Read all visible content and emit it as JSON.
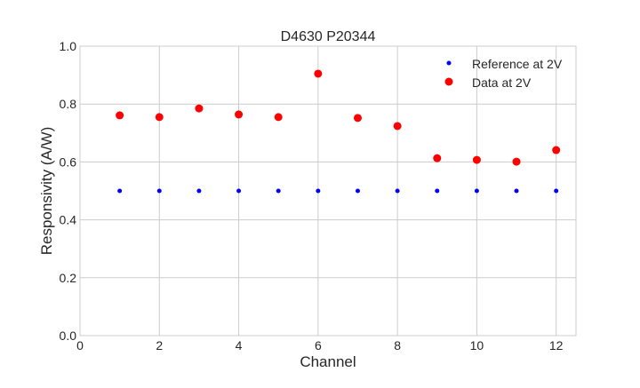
{
  "chart_data": {
    "type": "scatter",
    "title": "D4630 P20344",
    "xlabel": "Channel",
    "ylabel": "Responsivity (A/W)",
    "xlim": [
      0,
      12.5
    ],
    "ylim": [
      0,
      1.0
    ],
    "xticks": [
      "0",
      "2",
      "4",
      "6",
      "8",
      "10",
      "12"
    ],
    "yticks": [
      "0.0",
      "0.2",
      "0.4",
      "0.6",
      "0.8",
      "1.0"
    ],
    "grid": true,
    "legend_position": "top-right",
    "series": [
      {
        "name": "Reference at 2V",
        "color": "#0000ff",
        "marker": "small-dot",
        "x": [
          1,
          2,
          3,
          4,
          5,
          6,
          7,
          8,
          9,
          10,
          11,
          12
        ],
        "y": [
          0.5,
          0.5,
          0.5,
          0.5,
          0.5,
          0.5,
          0.5,
          0.5,
          0.5,
          0.5,
          0.5,
          0.5
        ]
      },
      {
        "name": "Data at 2V",
        "color": "#ff0000",
        "marker": "large-dot",
        "x": [
          1,
          2,
          3,
          4,
          5,
          6,
          7,
          8,
          9,
          10,
          11,
          12
        ],
        "y": [
          0.761,
          0.755,
          0.785,
          0.764,
          0.755,
          0.905,
          0.752,
          0.724,
          0.613,
          0.607,
          0.601,
          0.641
        ]
      }
    ]
  }
}
